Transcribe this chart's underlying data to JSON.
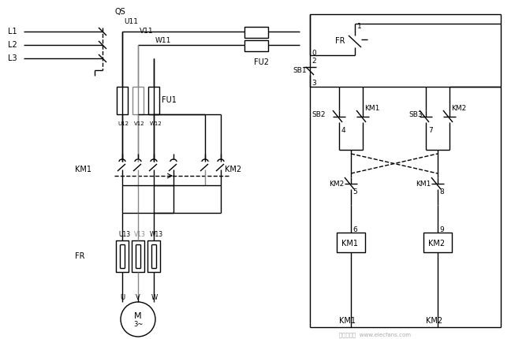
{
  "bg_color": "#ffffff",
  "line_color": "#000000",
  "gray_color": "#888888",
  "lw": 1.0,
  "fig_w": 6.48,
  "fig_h": 4.3,
  "dpi": 100,
  "labels": {
    "QS": "QS",
    "L1": "L1",
    "L2": "L2",
    "L3": "L3",
    "U11": "U11",
    "V11": "V11",
    "W11": "W11",
    "U12": "U12",
    "V12": "V12",
    "W12": "W12",
    "U13": "U13",
    "V13": "V13",
    "W13": "W13",
    "FU1": "FU1",
    "FU2": "FU2",
    "FR": "FR",
    "FR2": "FR",
    "KM1": "KM1",
    "KM2": "KM2",
    "SB1": "SB1",
    "SB2": "SB2",
    "SB3": "SB3",
    "M": "M",
    "M3": "3~",
    "n0": "0",
    "n1": "1",
    "n2": "2",
    "n3": "3",
    "n4": "4",
    "n5": "5",
    "n6": "6",
    "n7": "7",
    "n8": "8",
    "n9": "9",
    "KM1b": "KM1",
    "KM2b": "KM2",
    "KM1c": "KM1",
    "KM2c": "KM2",
    "KM1d": "KM1",
    "KM2d": "KM2",
    "watermark": "电子发烧友  www.elecfans.com"
  }
}
